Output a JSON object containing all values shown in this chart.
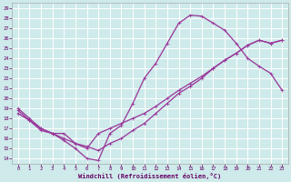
{
  "xlabel": "Windchill (Refroidissement éolien,°C)",
  "bg_color": "#ceeaea",
  "grid_color": "#ffffff",
  "line_color": "#993399",
  "xlim": [
    -0.5,
    23.5
  ],
  "ylim": [
    13.5,
    29.5
  ],
  "xticks": [
    0,
    1,
    2,
    3,
    4,
    5,
    6,
    7,
    8,
    9,
    10,
    11,
    12,
    13,
    14,
    15,
    16,
    17,
    18,
    19,
    20,
    21,
    22,
    23
  ],
  "yticks": [
    14,
    15,
    16,
    17,
    18,
    19,
    20,
    21,
    22,
    23,
    24,
    25,
    26,
    27,
    28,
    29
  ],
  "curve1_x": [
    0,
    1,
    2,
    3,
    4,
    5,
    6,
    7,
    8,
    9,
    10,
    11,
    12,
    13,
    14,
    15,
    16,
    17,
    18,
    19,
    20,
    21,
    22,
    23
  ],
  "curve1_y": [
    19.0,
    18.0,
    17.0,
    16.5,
    15.8,
    15.0,
    14.0,
    13.8,
    16.5,
    17.3,
    19.5,
    22.0,
    23.5,
    25.5,
    27.5,
    28.3,
    28.2,
    27.5,
    26.8,
    25.5,
    24.0,
    23.2,
    22.5,
    20.8
  ],
  "curve2_x": [
    0,
    1,
    2,
    3,
    4,
    5,
    6,
    7,
    8,
    9,
    10,
    11,
    12,
    13,
    14,
    15,
    16,
    17,
    18,
    19,
    20,
    21,
    22,
    23
  ],
  "curve2_y": [
    18.5,
    17.8,
    17.0,
    16.5,
    16.0,
    15.5,
    15.2,
    14.8,
    15.5,
    16.0,
    16.8,
    17.5,
    18.5,
    19.5,
    20.5,
    21.2,
    22.0,
    23.0,
    23.8,
    24.5,
    25.3,
    25.8,
    25.5,
    25.8
  ],
  "curve3_x": [
    0,
    1,
    2,
    3,
    4,
    5,
    6,
    7,
    8,
    9,
    10,
    11,
    12,
    13,
    14,
    15,
    16,
    17,
    18,
    19,
    20,
    21,
    22,
    23
  ],
  "curve3_y": [
    18.8,
    17.8,
    16.8,
    16.5,
    16.5,
    15.5,
    15.0,
    16.5,
    17.0,
    17.5,
    18.0,
    18.5,
    19.2,
    20.0,
    20.8,
    21.5,
    22.2,
    23.0,
    23.8,
    24.5,
    25.3,
    25.8,
    25.5,
    25.8
  ]
}
